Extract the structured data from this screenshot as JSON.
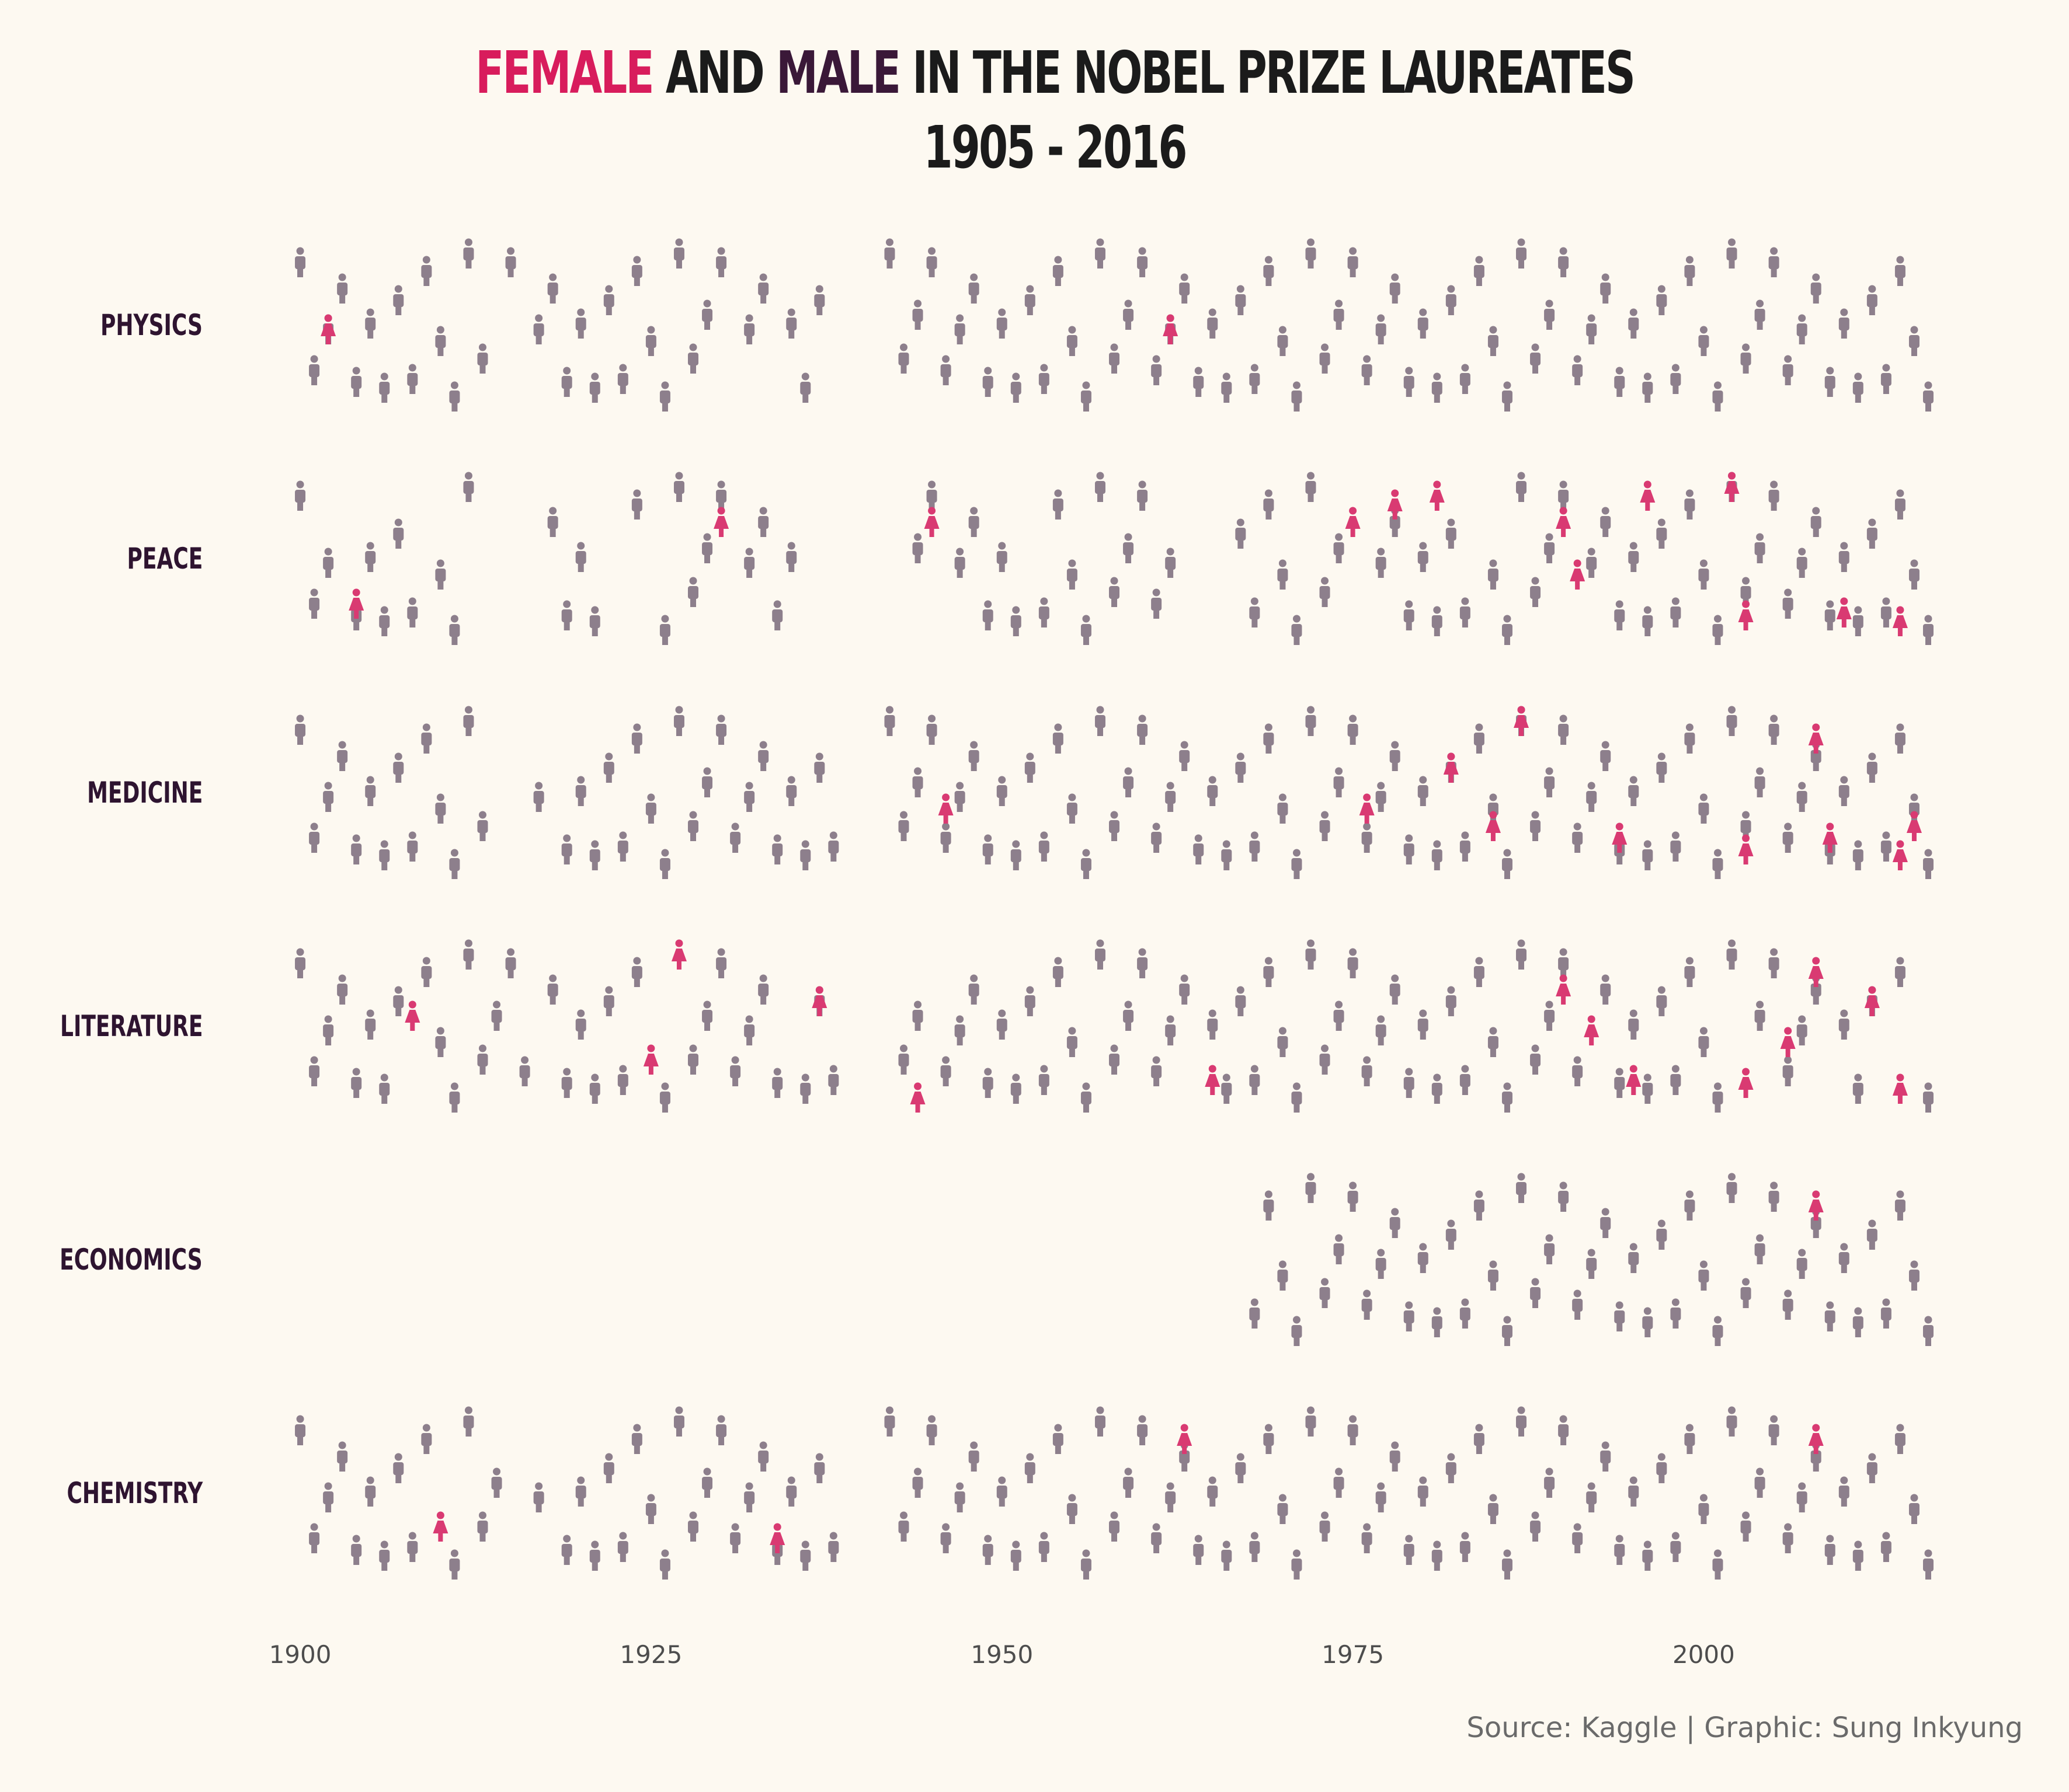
{
  "title": {
    "female_word": "FEMALE",
    "and_word": " AND ",
    "male_word": "MALE",
    "rest": " IN THE NOBEL PRIZE LAUREATES",
    "subtitle": "1905 - 2016"
  },
  "caption": "Source: Kaggle | Graphic: Sung Inkyung",
  "colors": {
    "female": "#d93a72",
    "male": "#8d7f8c",
    "background": "#fdf9f1",
    "title_female": "#d81c5c",
    "title_male": "#3a1838"
  },
  "icons": {
    "male": "man-icon",
    "female": "woman-icon"
  },
  "chart_data": {
    "type": "scatter",
    "title": "FEMALE AND MALE IN THE NOBEL PRIZE LAUREATES 1905 - 2016",
    "xlim": [
      1899,
      2016
    ],
    "x_ticks": [
      "1900",
      "1925",
      "1950",
      "1975",
      "2000"
    ],
    "categories": [
      "PHYSICS",
      "PEACE",
      "MEDICINE",
      "LITERATURE",
      "ECONOMICS",
      "CHEMISTRY"
    ],
    "series": [
      {
        "name": "PHYSICS",
        "male": [
          1900,
          1901,
          1902,
          1903,
          1904,
          1905,
          1906,
          1907,
          1908,
          1909,
          1910,
          1911,
          1912,
          1913,
          1915,
          1917,
          1918,
          1919,
          1920,
          1921,
          1922,
          1923,
          1924,
          1925,
          1926,
          1927,
          1928,
          1929,
          1930,
          1932,
          1933,
          1935,
          1936,
          1937,
          1942,
          1943,
          1944,
          1945,
          1946,
          1947,
          1948,
          1949,
          1950,
          1951,
          1952,
          1953,
          1954,
          1955,
          1956,
          1957,
          1958,
          1959,
          1960,
          1961,
          1962,
          1963,
          1964,
          1965,
          1966,
          1967,
          1968,
          1969,
          1970,
          1971,
          1972,
          1973,
          1974,
          1975,
          1976,
          1977,
          1978,
          1979,
          1980,
          1981,
          1982,
          1983,
          1984,
          1985,
          1986,
          1987,
          1988,
          1989,
          1990,
          1991,
          1992,
          1993,
          1994,
          1995,
          1996,
          1997,
          1998,
          1999,
          2000,
          2001,
          2002,
          2003,
          2004,
          2005,
          2006,
          2007,
          2008,
          2009,
          2010,
          2011,
          2012,
          2013,
          2014,
          2015,
          2016
        ],
        "female": [
          1902,
          1962
        ]
      },
      {
        "name": "PEACE",
        "male": [
          1900,
          1901,
          1902,
          1904,
          1905,
          1906,
          1907,
          1908,
          1910,
          1911,
          1912,
          1918,
          1919,
          1920,
          1921,
          1924,
          1926,
          1927,
          1928,
          1929,
          1930,
          1932,
          1933,
          1934,
          1935,
          1944,
          1945,
          1947,
          1948,
          1949,
          1950,
          1951,
          1953,
          1954,
          1955,
          1956,
          1957,
          1958,
          1959,
          1960,
          1961,
          1962,
          1967,
          1968,
          1969,
          1970,
          1971,
          1972,
          1973,
          1974,
          1977,
          1978,
          1979,
          1980,
          1981,
          1982,
          1983,
          1985,
          1986,
          1987,
          1988,
          1989,
          1990,
          1992,
          1993,
          1994,
          1995,
          1996,
          1997,
          1998,
          1999,
          2000,
          2001,
          2002,
          2003,
          2004,
          2005,
          2006,
          2007,
          2008,
          2009,
          2010,
          2011,
          2012,
          2013,
          2014,
          2015,
          2016
        ],
        "female": [
          1904,
          1930,
          1945,
          1975,
          1978,
          1981,
          1990,
          1991,
          1996,
          2002,
          2003,
          2010,
          2014
        ]
      },
      {
        "name": "MEDICINE",
        "male": [
          1900,
          1901,
          1902,
          1903,
          1904,
          1905,
          1906,
          1907,
          1908,
          1909,
          1910,
          1911,
          1912,
          1913,
          1917,
          1919,
          1920,
          1921,
          1922,
          1923,
          1924,
          1925,
          1926,
          1927,
          1928,
          1929,
          1930,
          1931,
          1932,
          1933,
          1934,
          1935,
          1936,
          1937,
          1938,
          1942,
          1943,
          1944,
          1945,
          1946,
          1947,
          1948,
          1949,
          1950,
          1951,
          1952,
          1953,
          1954,
          1955,
          1956,
          1957,
          1958,
          1959,
          1960,
          1961,
          1962,
          1963,
          1964,
          1965,
          1966,
          1967,
          1968,
          1969,
          1970,
          1971,
          1972,
          1973,
          1974,
          1975,
          1976,
          1977,
          1978,
          1979,
          1980,
          1981,
          1982,
          1983,
          1984,
          1985,
          1986,
          1987,
          1988,
          1989,
          1990,
          1991,
          1992,
          1993,
          1994,
          1995,
          1996,
          1997,
          1998,
          1999,
          2000,
          2001,
          2002,
          2003,
          2004,
          2005,
          2006,
          2007,
          2008,
          2009,
          2010,
          2011,
          2012,
          2013,
          2014,
          2015,
          2016
        ],
        "female": [
          1946,
          1976,
          1982,
          1985,
          1987,
          1994,
          2003,
          2008,
          2009,
          2014,
          2015
        ]
      },
      {
        "name": "LITERATURE",
        "male": [
          1900,
          1901,
          1902,
          1903,
          1904,
          1905,
          1906,
          1907,
          1909,
          1910,
          1911,
          1912,
          1913,
          1914,
          1915,
          1916,
          1918,
          1919,
          1920,
          1921,
          1922,
          1923,
          1924,
          1926,
          1928,
          1929,
          1930,
          1931,
          1932,
          1933,
          1934,
          1936,
          1937,
          1938,
          1943,
          1944,
          1946,
          1947,
          1948,
          1949,
          1950,
          1951,
          1952,
          1953,
          1954,
          1955,
          1956,
          1957,
          1958,
          1959,
          1960,
          1961,
          1962,
          1963,
          1965,
          1966,
          1967,
          1968,
          1969,
          1970,
          1971,
          1972,
          1973,
          1974,
          1975,
          1976,
          1977,
          1978,
          1979,
          1980,
          1981,
          1982,
          1983,
          1984,
          1985,
          1986,
          1987,
          1988,
          1989,
          1990,
          1991,
          1993,
          1994,
          1995,
          1996,
          1997,
          1998,
          1999,
          2000,
          2001,
          2002,
          2004,
          2005,
          2006,
          2007,
          2008,
          2010,
          2011,
          2012,
          2014,
          2016
        ],
        "female": [
          1908,
          1925,
          1927,
          1937,
          1944,
          1965,
          1990,
          1992,
          1995,
          2003,
          2006,
          2008,
          2012,
          2014
        ]
      },
      {
        "name": "ECONOMICS",
        "male": [
          1968,
          1969,
          1970,
          1971,
          1972,
          1973,
          1974,
          1975,
          1976,
          1977,
          1978,
          1979,
          1980,
          1981,
          1982,
          1983,
          1984,
          1985,
          1986,
          1987,
          1988,
          1989,
          1990,
          1991,
          1992,
          1993,
          1994,
          1995,
          1996,
          1997,
          1998,
          1999,
          2000,
          2001,
          2002,
          2003,
          2004,
          2005,
          2006,
          2007,
          2008,
          2009,
          2010,
          2011,
          2012,
          2013,
          2014,
          2015,
          2016
        ],
        "female": [
          2008
        ]
      },
      {
        "name": "CHEMISTRY",
        "male": [
          1900,
          1901,
          1902,
          1903,
          1904,
          1905,
          1906,
          1907,
          1908,
          1909,
          1911,
          1912,
          1913,
          1914,
          1917,
          1919,
          1920,
          1921,
          1922,
          1923,
          1924,
          1925,
          1926,
          1927,
          1928,
          1929,
          1930,
          1931,
          1932,
          1933,
          1934,
          1935,
          1936,
          1937,
          1938,
          1942,
          1943,
          1944,
          1945,
          1946,
          1947,
          1948,
          1949,
          1950,
          1951,
          1952,
          1953,
          1954,
          1955,
          1956,
          1957,
          1958,
          1959,
          1960,
          1961,
          1962,
          1963,
          1964,
          1965,
          1966,
          1967,
          1968,
          1969,
          1970,
          1971,
          1972,
          1973,
          1974,
          1975,
          1976,
          1977,
          1978,
          1979,
          1980,
          1981,
          1982,
          1983,
          1984,
          1985,
          1986,
          1987,
          1988,
          1989,
          1990,
          1991,
          1992,
          1993,
          1994,
          1995,
          1996,
          1997,
          1998,
          1999,
          2000,
          2001,
          2002,
          2003,
          2004,
          2005,
          2006,
          2007,
          2008,
          2009,
          2010,
          2011,
          2012,
          2013,
          2014,
          2015,
          2016
        ],
        "female": [
          1910,
          1934,
          1963,
          2008
        ]
      }
    ]
  }
}
